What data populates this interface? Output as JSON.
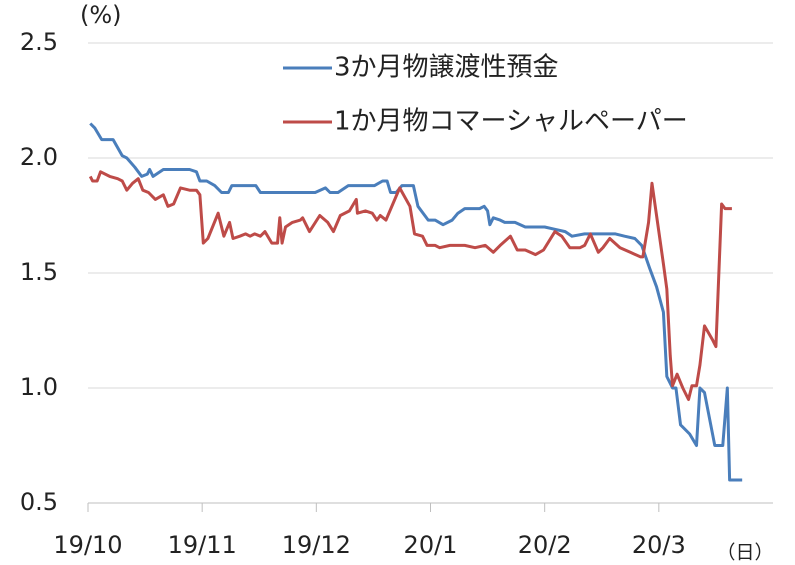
{
  "chart_data": {
    "type": "line",
    "y_label": "(%)",
    "x_label": "（日）",
    "xlim": [
      0,
      6
    ],
    "xticks": [
      {
        "value": 0,
        "label": "19/10"
      },
      {
        "value": 1,
        "label": "19/11"
      },
      {
        "value": 2,
        "label": "19/12"
      },
      {
        "value": 3,
        "label": "20/1"
      },
      {
        "value": 4,
        "label": "20/2"
      },
      {
        "value": 5,
        "label": "20/3"
      }
    ],
    "ylim": [
      0.5,
      2.5
    ],
    "yticks": [
      {
        "value": 0.5,
        "label": "0.5"
      },
      {
        "value": 1.0,
        "label": "1.0"
      },
      {
        "value": 1.5,
        "label": "1.5"
      },
      {
        "value": 2.0,
        "label": "2.0"
      },
      {
        "value": 2.5,
        "label": "2.5"
      }
    ],
    "grid": true,
    "series": [
      {
        "name": "3か月物譲渡性預金",
        "color": "#4a7ebb",
        "x": [
          0.02,
          0.06,
          0.12,
          0.22,
          0.3,
          0.34,
          0.41,
          0.47,
          0.52,
          0.54,
          0.57,
          0.66,
          0.89,
          0.95,
          0.98,
          1.04,
          1.11,
          1.17,
          1.23,
          1.26,
          1.47,
          1.51,
          1.99,
          2.08,
          2.12,
          2.19,
          2.28,
          2.51,
          2.58,
          2.62,
          2.65,
          2.7,
          2.75,
          2.85,
          2.89,
          2.98,
          3.04,
          3.11,
          3.19,
          3.24,
          3.3,
          3.43,
          3.47,
          3.5,
          3.52,
          3.55,
          3.61,
          3.65,
          3.74,
          3.83,
          4.0,
          4.09,
          4.18,
          4.24,
          4.35,
          4.62,
          4.7,
          4.79,
          4.85,
          4.92,
          4.98,
          5.04,
          5.07,
          5.12,
          5.15,
          5.19,
          5.27,
          5.33,
          5.36,
          5.4,
          5.49,
          5.56,
          5.6,
          5.62,
          5.73
        ],
        "values": [
          2.15,
          2.13,
          2.08,
          2.08,
          2.01,
          2.0,
          1.96,
          1.92,
          1.93,
          1.95,
          1.92,
          1.95,
          1.95,
          1.94,
          1.9,
          1.9,
          1.88,
          1.85,
          1.85,
          1.88,
          1.88,
          1.85,
          1.85,
          1.87,
          1.85,
          1.85,
          1.88,
          1.88,
          1.9,
          1.9,
          1.85,
          1.85,
          1.88,
          1.88,
          1.79,
          1.73,
          1.73,
          1.71,
          1.73,
          1.76,
          1.78,
          1.78,
          1.79,
          1.77,
          1.71,
          1.74,
          1.73,
          1.72,
          1.72,
          1.7,
          1.7,
          1.69,
          1.68,
          1.66,
          1.67,
          1.67,
          1.66,
          1.65,
          1.62,
          1.52,
          1.44,
          1.33,
          1.05,
          1.0,
          1.0,
          0.84,
          0.8,
          0.75,
          1.0,
          0.98,
          0.75,
          0.75,
          1.0,
          0.6,
          0.6
        ]
      },
      {
        "name": "1か月物コマーシャルペーパー",
        "color": "#be4b48",
        "x": [
          0.02,
          0.04,
          0.08,
          0.11,
          0.19,
          0.26,
          0.3,
          0.34,
          0.39,
          0.44,
          0.48,
          0.53,
          0.59,
          0.66,
          0.7,
          0.75,
          0.81,
          0.89,
          0.95,
          0.98,
          1.01,
          1.05,
          1.14,
          1.19,
          1.24,
          1.27,
          1.33,
          1.38,
          1.42,
          1.46,
          1.51,
          1.55,
          1.61,
          1.66,
          1.68,
          1.7,
          1.73,
          1.79,
          1.86,
          1.88,
          1.94,
          2.03,
          2.1,
          2.15,
          2.21,
          2.29,
          2.35,
          2.36,
          2.43,
          2.49,
          2.53,
          2.56,
          2.61,
          2.67,
          2.73,
          2.82,
          2.86,
          2.93,
          2.97,
          3.04,
          3.08,
          3.17,
          3.3,
          3.39,
          3.48,
          3.55,
          3.61,
          3.7,
          3.76,
          3.83,
          3.92,
          3.99,
          4.09,
          4.15,
          4.22,
          4.31,
          4.35,
          4.4,
          4.47,
          4.51,
          4.57,
          4.66,
          4.75,
          4.84,
          4.86,
          4.91,
          4.94,
          4.98,
          5.04,
          5.07,
          5.1,
          5.12,
          5.16,
          5.21,
          5.26,
          5.29,
          5.33,
          5.36,
          5.4,
          5.47,
          5.5,
          5.55,
          5.58,
          5.64
        ],
        "values": [
          1.92,
          1.9,
          1.9,
          1.94,
          1.92,
          1.91,
          1.9,
          1.86,
          1.89,
          1.91,
          1.86,
          1.85,
          1.82,
          1.84,
          1.79,
          1.8,
          1.87,
          1.86,
          1.86,
          1.84,
          1.63,
          1.65,
          1.76,
          1.66,
          1.72,
          1.65,
          1.66,
          1.67,
          1.66,
          1.67,
          1.66,
          1.68,
          1.63,
          1.63,
          1.74,
          1.63,
          1.7,
          1.72,
          1.73,
          1.74,
          1.68,
          1.75,
          1.72,
          1.68,
          1.75,
          1.77,
          1.82,
          1.76,
          1.77,
          1.76,
          1.73,
          1.75,
          1.73,
          1.8,
          1.87,
          1.79,
          1.67,
          1.66,
          1.62,
          1.62,
          1.61,
          1.62,
          1.62,
          1.61,
          1.62,
          1.59,
          1.62,
          1.66,
          1.6,
          1.6,
          1.58,
          1.6,
          1.68,
          1.66,
          1.61,
          1.61,
          1.62,
          1.67,
          1.59,
          1.61,
          1.65,
          1.61,
          1.59,
          1.57,
          1.57,
          1.72,
          1.89,
          1.75,
          1.54,
          1.43,
          1.14,
          1.01,
          1.06,
          1.0,
          0.95,
          1.01,
          1.01,
          1.1,
          1.27,
          1.21,
          1.18,
          1.8,
          1.78,
          1.78
        ]
      }
    ]
  }
}
